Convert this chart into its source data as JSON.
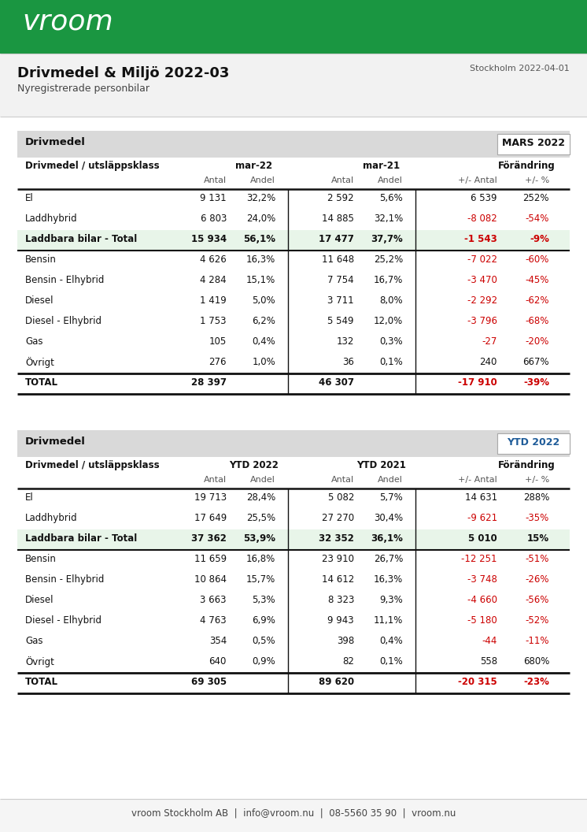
{
  "title": "Drivmedel & Miljö 2022-03",
  "subtitle": "Nyregistrerade personbilar",
  "date": "Stockholm 2022-04-01",
  "header_bg": "#1a9641",
  "page_bg": "#f0f0f0",
  "white": "#ffffff",
  "section_bg": "#d9d9d9",
  "highlight_bg": "#e8f5e9",
  "red": "#cc0000",
  "black": "#111111",
  "blue": "#1f5c99",
  "table1": {
    "section_label": "Drivmedel",
    "period_label": "MARS 2022",
    "period_color": "#111111",
    "col2_header": "mar-22",
    "col3_header": "mar-21",
    "col4_header": "Förändring",
    "rows": [
      {
        "label": "El",
        "a22": "9 131",
        "p22": "32,2%",
        "a21": "2 592",
        "p21": "5,6%",
        "da": "6 539",
        "dp": "252%",
        "da_red": false,
        "dp_red": false,
        "bold": false,
        "highlight": false,
        "is_total": false
      },
      {
        "label": "Laddhybrid",
        "a22": "6 803",
        "p22": "24,0%",
        "a21": "14 885",
        "p21": "32,1%",
        "da": "-8 082",
        "dp": "-54%",
        "da_red": true,
        "dp_red": true,
        "bold": false,
        "highlight": false,
        "is_total": false
      },
      {
        "label": "Laddbara bilar - Total",
        "a22": "15 934",
        "p22": "56,1%",
        "a21": "17 477",
        "p21": "37,7%",
        "da": "-1 543",
        "dp": "-9%",
        "da_red": true,
        "dp_red": true,
        "bold": true,
        "highlight": true,
        "is_total": false
      },
      {
        "label": "Bensin",
        "a22": "4 626",
        "p22": "16,3%",
        "a21": "11 648",
        "p21": "25,2%",
        "da": "-7 022",
        "dp": "-60%",
        "da_red": true,
        "dp_red": true,
        "bold": false,
        "highlight": false,
        "is_total": false
      },
      {
        "label": "Bensin - Elhybrid",
        "a22": "4 284",
        "p22": "15,1%",
        "a21": "7 754",
        "p21": "16,7%",
        "da": "-3 470",
        "dp": "-45%",
        "da_red": true,
        "dp_red": true,
        "bold": false,
        "highlight": false,
        "is_total": false
      },
      {
        "label": "Diesel",
        "a22": "1 419",
        "p22": "5,0%",
        "a21": "3 711",
        "p21": "8,0%",
        "da": "-2 292",
        "dp": "-62%",
        "da_red": true,
        "dp_red": true,
        "bold": false,
        "highlight": false,
        "is_total": false
      },
      {
        "label": "Diesel - Elhybrid",
        "a22": "1 753",
        "p22": "6,2%",
        "a21": "5 549",
        "p21": "12,0%",
        "da": "-3 796",
        "dp": "-68%",
        "da_red": true,
        "dp_red": true,
        "bold": false,
        "highlight": false,
        "is_total": false
      },
      {
        "label": "Gas",
        "a22": "105",
        "p22": "0,4%",
        "a21": "132",
        "p21": "0,3%",
        "da": "-27",
        "dp": "-20%",
        "da_red": true,
        "dp_red": true,
        "bold": false,
        "highlight": false,
        "is_total": false
      },
      {
        "label": "Övrigt",
        "a22": "276",
        "p22": "1,0%",
        "a21": "36",
        "p21": "0,1%",
        "da": "240",
        "dp": "667%",
        "da_red": false,
        "dp_red": false,
        "bold": false,
        "highlight": false,
        "is_total": false
      },
      {
        "label": "TOTAL",
        "a22": "28 397",
        "p22": "",
        "a21": "46 307",
        "p21": "",
        "da": "-17 910",
        "dp": "-39%",
        "da_red": true,
        "dp_red": true,
        "bold": true,
        "highlight": false,
        "is_total": true
      }
    ]
  },
  "table2": {
    "section_label": "Drivmedel",
    "period_label": "YTD 2022",
    "period_color": "#1f5c99",
    "col2_header": "YTD 2022",
    "col3_header": "YTD 2021",
    "col4_header": "Förändring",
    "rows": [
      {
        "label": "El",
        "a22": "19 713",
        "p22": "28,4%",
        "a21": "5 082",
        "p21": "5,7%",
        "da": "14 631",
        "dp": "288%",
        "da_red": false,
        "dp_red": false,
        "bold": false,
        "highlight": false,
        "is_total": false
      },
      {
        "label": "Laddhybrid",
        "a22": "17 649",
        "p22": "25,5%",
        "a21": "27 270",
        "p21": "30,4%",
        "da": "-9 621",
        "dp": "-35%",
        "da_red": true,
        "dp_red": true,
        "bold": false,
        "highlight": false,
        "is_total": false
      },
      {
        "label": "Laddbara bilar - Total",
        "a22": "37 362",
        "p22": "53,9%",
        "a21": "32 352",
        "p21": "36,1%",
        "da": "5 010",
        "dp": "15%",
        "da_red": false,
        "dp_red": false,
        "bold": true,
        "highlight": true,
        "is_total": false
      },
      {
        "label": "Bensin",
        "a22": "11 659",
        "p22": "16,8%",
        "a21": "23 910",
        "p21": "26,7%",
        "da": "-12 251",
        "dp": "-51%",
        "da_red": true,
        "dp_red": true,
        "bold": false,
        "highlight": false,
        "is_total": false
      },
      {
        "label": "Bensin - Elhybrid",
        "a22": "10 864",
        "p22": "15,7%",
        "a21": "14 612",
        "p21": "16,3%",
        "da": "-3 748",
        "dp": "-26%",
        "da_red": true,
        "dp_red": true,
        "bold": false,
        "highlight": false,
        "is_total": false
      },
      {
        "label": "Diesel",
        "a22": "3 663",
        "p22": "5,3%",
        "a21": "8 323",
        "p21": "9,3%",
        "da": "-4 660",
        "dp": "-56%",
        "da_red": true,
        "dp_red": true,
        "bold": false,
        "highlight": false,
        "is_total": false
      },
      {
        "label": "Diesel - Elhybrid",
        "a22": "4 763",
        "p22": "6,9%",
        "a21": "9 943",
        "p21": "11,1%",
        "da": "-5 180",
        "dp": "-52%",
        "da_red": true,
        "dp_red": true,
        "bold": false,
        "highlight": false,
        "is_total": false
      },
      {
        "label": "Gas",
        "a22": "354",
        "p22": "0,5%",
        "a21": "398",
        "p21": "0,4%",
        "da": "-44",
        "dp": "-11%",
        "da_red": true,
        "dp_red": true,
        "bold": false,
        "highlight": false,
        "is_total": false
      },
      {
        "label": "Övrigt",
        "a22": "640",
        "p22": "0,9%",
        "a21": "82",
        "p21": "0,1%",
        "da": "558",
        "dp": "680%",
        "da_red": false,
        "dp_red": false,
        "bold": false,
        "highlight": false,
        "is_total": false
      },
      {
        "label": "TOTAL",
        "a22": "69 305",
        "p22": "",
        "a21": "89 620",
        "p21": "",
        "da": "-20 315",
        "dp": "-23%",
        "da_red": true,
        "dp_red": true,
        "bold": true,
        "highlight": false,
        "is_total": true
      }
    ]
  },
  "footer": "vroom Stockholm AB  |  info@vroom.nu  |  08-5560 35 90  |  vroom.nu"
}
